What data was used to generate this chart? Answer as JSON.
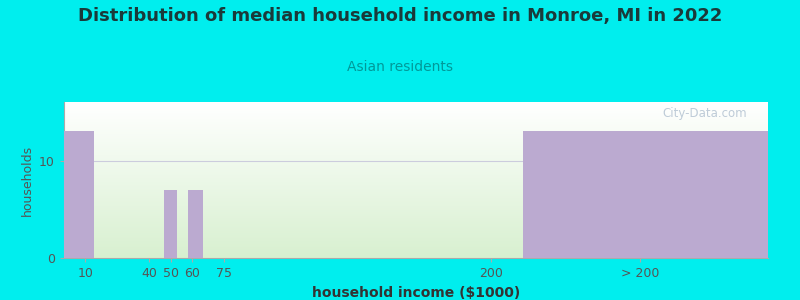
{
  "title": "Distribution of median household income in Monroe, MI in 2022",
  "subtitle": "Asian residents",
  "xlabel": "household income ($1000)",
  "ylabel": "households",
  "background_color": "#00EEEE",
  "plot_bg_top": "#ffffff",
  "plot_bg_bottom": "#d8f0d0",
  "bar_color": "#bbaad0",
  "title_fontsize": 13,
  "subtitle_fontsize": 10,
  "title_color": "#1a3a3a",
  "subtitle_color": "#009999",
  "watermark": "City-Data.com",
  "tick_labels": [
    "10",
    "40",
    "50",
    "60",
    "75",
    "200",
    "> 200"
  ],
  "tick_positions": [
    10,
    40,
    50,
    60,
    75,
    200,
    270
  ],
  "bar_lefts": [
    0,
    50,
    55,
    62,
    null,
    null,
    215
  ],
  "bar_rights": [
    15,
    null,
    58,
    70,
    null,
    null,
    330
  ],
  "bar_heights": [
    13,
    0,
    7,
    7,
    0,
    0,
    13
  ],
  "yticks": [
    0,
    10
  ],
  "ylim": [
    0,
    16
  ],
  "xlim": [
    0,
    330
  ],
  "hline_y": 10,
  "hline_color": "#ccccdd"
}
